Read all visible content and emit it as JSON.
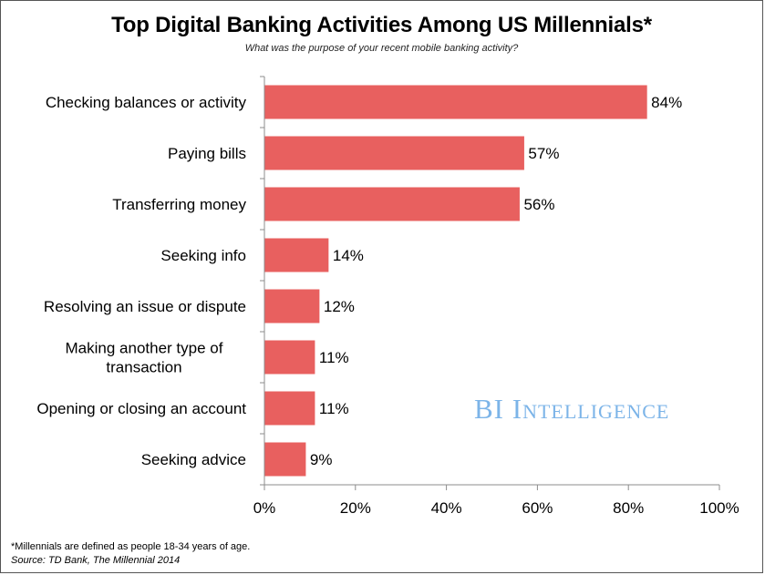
{
  "page": {
    "title": "Top Digital Banking Activities Among US Millennials*",
    "subtitle": "What was the purpose of your recent mobile banking activity?",
    "footnote": "*Millennials are defined as people 18-34 years of age.",
    "source": "Source: TD Bank, The Millennial 2014",
    "watermark": "BI Intelligence"
  },
  "colors": {
    "bar": "#e8605f",
    "axis": "#8c8c8c",
    "text": "#000000",
    "watermark": "#7cb4e8"
  },
  "chart_data": {
    "type": "bar",
    "orientation": "horizontal",
    "title": "Top Digital Banking Activities Among US Millennials*",
    "subtitle": "What was the purpose of your recent mobile banking activity?",
    "categories": [
      "Checking balances or activity",
      "Paying bills",
      "Transferring money",
      "Seeking info",
      "Resolving an issue or dispute",
      "Making another type of transaction",
      "Opening or closing an account",
      "Seeking advice"
    ],
    "category_label_lines": [
      [
        "Checking balances or activity"
      ],
      [
        "Paying bills"
      ],
      [
        "Transferring money"
      ],
      [
        "Seeking info"
      ],
      [
        "Resolving an issue or dispute"
      ],
      [
        "Making another type of",
        "transaction"
      ],
      [
        "Opening or closing an account"
      ],
      [
        "Seeking advice"
      ]
    ],
    "values": [
      84,
      57,
      56,
      14,
      12,
      11,
      11,
      9
    ],
    "data_labels": [
      "84%",
      "57%",
      "56%",
      "14%",
      "12%",
      "11%",
      "11%",
      "9%"
    ],
    "xlim": [
      0,
      100
    ],
    "xticks": [
      0,
      20,
      40,
      60,
      80,
      100
    ],
    "xtick_labels": [
      "0%",
      "20%",
      "40%",
      "60%",
      "80%",
      "100%"
    ],
    "grid": false,
    "legend": "none"
  }
}
